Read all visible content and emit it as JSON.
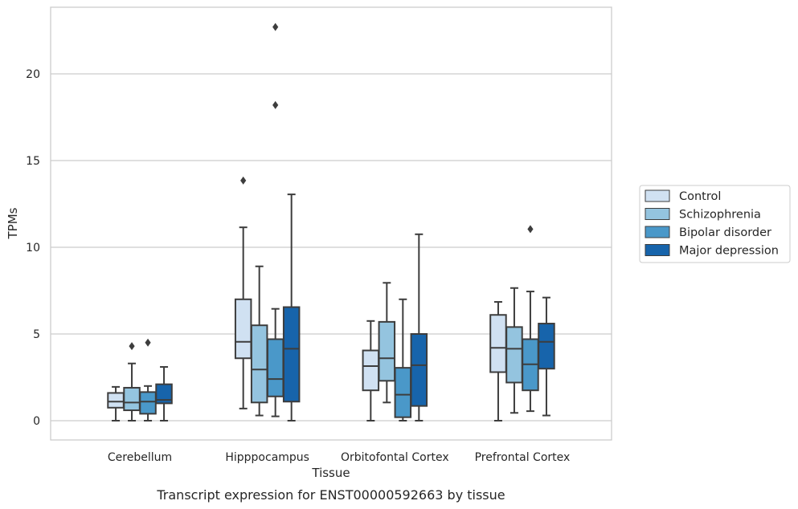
{
  "chart_data": {
    "type": "boxplot",
    "caption": "Transcript expression for ENST00000592663 by tissue",
    "xlabel": "Tissue",
    "ylabel": "TPMs",
    "ylim": [
      -1.1,
      23.8
    ],
    "yticks": [
      0,
      5,
      10,
      15,
      20
    ],
    "grid": "horizontal",
    "legend_position": "right",
    "categories": [
      "Cerebellum",
      "Hipppocampus",
      "Orbitofontal Cortex",
      "Prefrontal Cortex"
    ],
    "series": [
      {
        "name": "Control",
        "color": "#d0e1f2",
        "boxes": [
          {
            "whislo": 0.0,
            "q1": 0.75,
            "med": 1.1,
            "q3": 1.6,
            "whishi": 1.95,
            "fliers": []
          },
          {
            "whislo": 0.7,
            "q1": 3.6,
            "med": 4.55,
            "q3": 7.0,
            "whishi": 11.15,
            "fliers": [
              13.85
            ]
          },
          {
            "whislo": 0.0,
            "q1": 1.75,
            "med": 3.15,
            "q3": 4.05,
            "whishi": 5.75,
            "fliers": []
          },
          {
            "whislo": 0.0,
            "q1": 2.8,
            "med": 4.2,
            "q3": 6.1,
            "whishi": 6.85,
            "fliers": []
          }
        ]
      },
      {
        "name": "Schizophrenia",
        "color": "#94c4df",
        "boxes": [
          {
            "whislo": 0.0,
            "q1": 0.6,
            "med": 1.05,
            "q3": 1.9,
            "whishi": 3.3,
            "fliers": [
              4.3
            ]
          },
          {
            "whislo": 0.3,
            "q1": 1.05,
            "med": 2.95,
            "q3": 5.5,
            "whishi": 8.9,
            "fliers": []
          },
          {
            "whislo": 1.05,
            "q1": 2.3,
            "med": 3.6,
            "q3": 5.7,
            "whishi": 7.95,
            "fliers": []
          },
          {
            "whislo": 0.45,
            "q1": 2.2,
            "med": 4.15,
            "q3": 5.4,
            "whishi": 7.65,
            "fliers": []
          }
        ]
      },
      {
        "name": "Bipolar disorder",
        "color": "#4a98c9",
        "boxes": [
          {
            "whislo": 0.0,
            "q1": 0.4,
            "med": 1.1,
            "q3": 1.65,
            "whishi": 2.0,
            "fliers": [
              4.5
            ]
          },
          {
            "whislo": 0.25,
            "q1": 1.4,
            "med": 2.4,
            "q3": 4.7,
            "whishi": 6.45,
            "fliers": [
              22.7,
              18.2
            ]
          },
          {
            "whislo": 0.0,
            "q1": 0.2,
            "med": 1.5,
            "q3": 3.05,
            "whishi": 7.0,
            "fliers": []
          },
          {
            "whislo": 0.55,
            "q1": 1.75,
            "med": 3.25,
            "q3": 4.7,
            "whishi": 7.45,
            "fliers": [
              11.05
            ]
          }
        ]
      },
      {
        "name": "Major depression",
        "color": "#1764ab",
        "boxes": [
          {
            "whislo": 0.0,
            "q1": 1.0,
            "med": 1.2,
            "q3": 2.1,
            "whishi": 3.1,
            "fliers": []
          },
          {
            "whislo": 0.0,
            "q1": 1.1,
            "med": 4.15,
            "q3": 6.55,
            "whishi": 13.05,
            "fliers": []
          },
          {
            "whislo": 0.0,
            "q1": 0.85,
            "med": 3.2,
            "q3": 5.0,
            "whishi": 10.75,
            "fliers": []
          },
          {
            "whislo": 0.3,
            "q1": 3.0,
            "med": 4.55,
            "q3": 5.6,
            "whishi": 7.1,
            "fliers": []
          }
        ]
      }
    ]
  }
}
